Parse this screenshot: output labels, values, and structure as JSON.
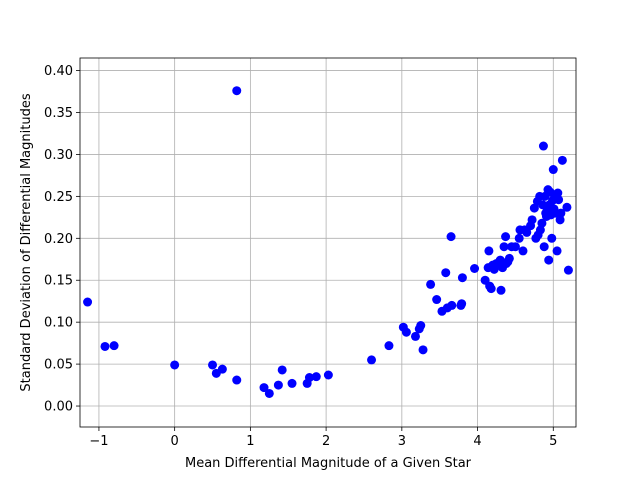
{
  "chart_data": {
    "type": "scatter",
    "title": "",
    "xlabel": "Mean Differential Magnitude of a Given Star",
    "ylabel": "Standard Deviation of Differential Magnitudes",
    "xlim": [
      -1.25,
      5.3
    ],
    "ylim": [
      -0.025,
      0.415
    ],
    "x_ticks": [
      -1,
      0,
      1,
      2,
      3,
      4,
      5
    ],
    "x_tick_labels": [
      "−1",
      "0",
      "1",
      "2",
      "3",
      "4",
      "5"
    ],
    "y_ticks": [
      0.0,
      0.05,
      0.1,
      0.15,
      0.2,
      0.25,
      0.3,
      0.35,
      0.4
    ],
    "y_tick_labels": [
      "0.00",
      "0.05",
      "0.10",
      "0.15",
      "0.20",
      "0.25",
      "0.30",
      "0.35",
      "0.40"
    ],
    "grid": true,
    "legend": "none",
    "marker_color": "#0000ff",
    "points": [
      [
        -1.15,
        0.124
      ],
      [
        -0.92,
        0.071
      ],
      [
        -0.8,
        0.072
      ],
      [
        0.0,
        0.049
      ],
      [
        0.5,
        0.049
      ],
      [
        0.55,
        0.039
      ],
      [
        0.63,
        0.044
      ],
      [
        0.82,
        0.031
      ],
      [
        0.82,
        0.376
      ],
      [
        1.18,
        0.022
      ],
      [
        1.25,
        0.015
      ],
      [
        1.37,
        0.025
      ],
      [
        1.42,
        0.043
      ],
      [
        1.55,
        0.027
      ],
      [
        1.75,
        0.027
      ],
      [
        1.78,
        0.034
      ],
      [
        1.87,
        0.035
      ],
      [
        2.03,
        0.037
      ],
      [
        2.6,
        0.055
      ],
      [
        2.83,
        0.072
      ],
      [
        3.02,
        0.094
      ],
      [
        3.06,
        0.088
      ],
      [
        3.18,
        0.083
      ],
      [
        3.23,
        0.092
      ],
      [
        3.25,
        0.096
      ],
      [
        3.28,
        0.067
      ],
      [
        3.38,
        0.145
      ],
      [
        3.46,
        0.127
      ],
      [
        3.53,
        0.113
      ],
      [
        3.58,
        0.159
      ],
      [
        3.6,
        0.117
      ],
      [
        3.65,
        0.202
      ],
      [
        3.66,
        0.12
      ],
      [
        3.78,
        0.12
      ],
      [
        3.79,
        0.122
      ],
      [
        3.8,
        0.153
      ],
      [
        3.96,
        0.164
      ],
      [
        4.1,
        0.15
      ],
      [
        4.14,
        0.165
      ],
      [
        4.15,
        0.185
      ],
      [
        4.16,
        0.143
      ],
      [
        4.18,
        0.14
      ],
      [
        4.2,
        0.168
      ],
      [
        4.22,
        0.163
      ],
      [
        4.25,
        0.17
      ],
      [
        4.3,
        0.174
      ],
      [
        4.31,
        0.138
      ],
      [
        4.33,
        0.165
      ],
      [
        4.35,
        0.19
      ],
      [
        4.37,
        0.202
      ],
      [
        4.38,
        0.17
      ],
      [
        4.4,
        0.172
      ],
      [
        4.42,
        0.176
      ],
      [
        4.45,
        0.19
      ],
      [
        4.5,
        0.19
      ],
      [
        4.55,
        0.2
      ],
      [
        4.56,
        0.21
      ],
      [
        4.6,
        0.185
      ],
      [
        4.62,
        0.21
      ],
      [
        4.65,
        0.207
      ],
      [
        4.7,
        0.215
      ],
      [
        4.72,
        0.222
      ],
      [
        4.75,
        0.236
      ],
      [
        4.77,
        0.2
      ],
      [
        4.79,
        0.244
      ],
      [
        4.8,
        0.204
      ],
      [
        4.82,
        0.25
      ],
      [
        4.83,
        0.21
      ],
      [
        4.85,
        0.218
      ],
      [
        4.86,
        0.24
      ],
      [
        4.87,
        0.31
      ],
      [
        4.88,
        0.19
      ],
      [
        4.89,
        0.25
      ],
      [
        4.9,
        0.23
      ],
      [
        4.91,
        0.226
      ],
      [
        4.92,
        0.234
      ],
      [
        4.93,
        0.258
      ],
      [
        4.94,
        0.174
      ],
      [
        4.95,
        0.24
      ],
      [
        4.96,
        0.255
      ],
      [
        4.97,
        0.228
      ],
      [
        4.98,
        0.2
      ],
      [
        4.99,
        0.245
      ],
      [
        5.0,
        0.282
      ],
      [
        5.01,
        0.235
      ],
      [
        5.02,
        0.25
      ],
      [
        5.03,
        0.23
      ],
      [
        5.05,
        0.185
      ],
      [
        5.06,
        0.254
      ],
      [
        5.07,
        0.246
      ],
      [
        5.09,
        0.222
      ],
      [
        5.1,
        0.23
      ],
      [
        5.12,
        0.293
      ],
      [
        5.18,
        0.237
      ],
      [
        5.2,
        0.162
      ]
    ]
  }
}
